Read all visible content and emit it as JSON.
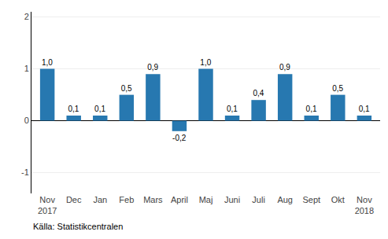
{
  "chart_data": {
    "type": "bar",
    "categories": [
      "Nov\n2017",
      "Dec",
      "Jan",
      "Feb",
      "Mars",
      "April",
      "Maj",
      "Juni",
      "Juli",
      "Aug",
      "Sept",
      "Okt",
      "Nov\n2018"
    ],
    "values": [
      1.0,
      0.1,
      0.1,
      0.5,
      0.9,
      -0.2,
      1.0,
      0.1,
      0.4,
      0.9,
      0.1,
      0.5,
      0.1
    ],
    "value_labels": [
      "1,0",
      "0,1",
      "0,1",
      "0,5",
      "0,9",
      "-0,2",
      "1,0",
      "0,1",
      "0,4",
      "0,9",
      "0,1",
      "0,5",
      "0,1"
    ],
    "data_labels": true,
    "color": "#2778b0",
    "ylim": [
      -1.4,
      2.1
    ],
    "yticks": [
      -1,
      0,
      1,
      2
    ],
    "grid": true,
    "annotations": [
      "Källa: Statistikcentralen"
    ]
  }
}
